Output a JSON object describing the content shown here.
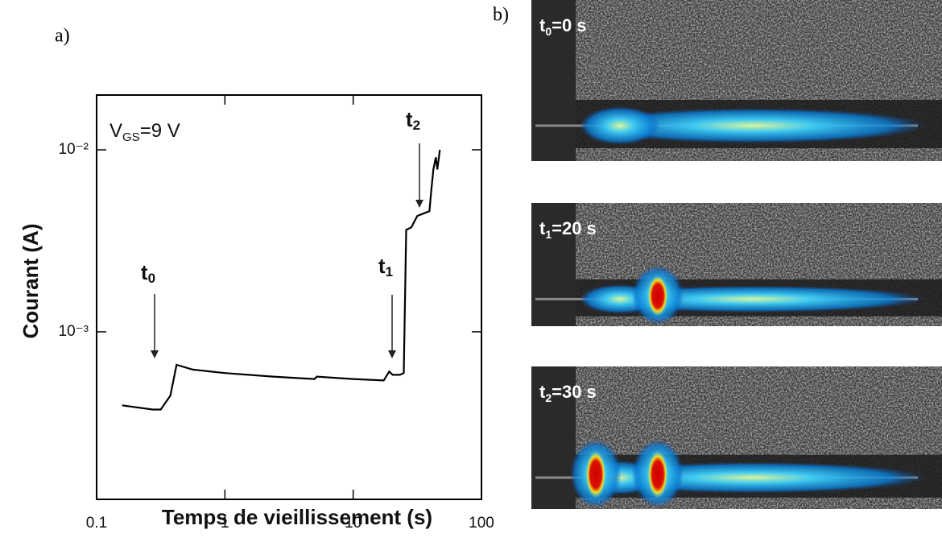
{
  "chart_data": {
    "type": "line",
    "xlabel": "Temps de vieillissement (s)",
    "ylabel": "Courant (A)",
    "xlog": true,
    "ylog": true,
    "xlim": [
      0.1,
      100
    ],
    "ylim": [
      0.00012,
      0.02
    ],
    "xticks": [
      0.1,
      1,
      10,
      100
    ],
    "yticks": [
      {
        "value": 0.001,
        "label": "10⁻³"
      },
      {
        "value": 0.01,
        "label": "10⁻²"
      }
    ],
    "x": [
      0.158,
      0.274,
      0.316,
      0.376,
      0.42,
      0.562,
      1,
      2.37,
      5.0,
      5.2,
      10,
      17.3,
      19.1,
      20.3,
      23.1,
      24.8,
      25.9,
      28.4,
      31.6,
      39.3,
      40.4,
      42.2,
      44.1,
      45.3,
      47.4
    ],
    "series": [
      {
        "color": "#000000",
        "values": [
          0.000394,
          0.000374,
          0.000374,
          0.000446,
          0.000658,
          0.00062,
          0.000593,
          0.000567,
          0.00055,
          0.000567,
          0.00055,
          0.00054,
          0.000605,
          0.00058,
          0.00058,
          0.000593,
          0.00363,
          0.00375,
          0.00433,
          0.0046,
          0.00575,
          0.00782,
          0.0091,
          0.0078,
          0.01
        ]
      }
    ],
    "annotations": [
      {
        "main": "V",
        "sub": "GS",
        "rest": "=9 V"
      },
      {
        "main": "t",
        "sub": "0"
      },
      {
        "main": "t",
        "sub": "1"
      },
      {
        "main": "t",
        "sub": "2"
      }
    ]
  },
  "panels": {
    "a": "a)",
    "b": "b)"
  },
  "frames": [
    {
      "main": "t",
      "sub": "0",
      "rest": "=0 s"
    },
    {
      "main": "t",
      "sub": "1",
      "rest": "=20 s"
    },
    {
      "main": "t",
      "sub": "2",
      "rest": "=30 s"
    }
  ]
}
